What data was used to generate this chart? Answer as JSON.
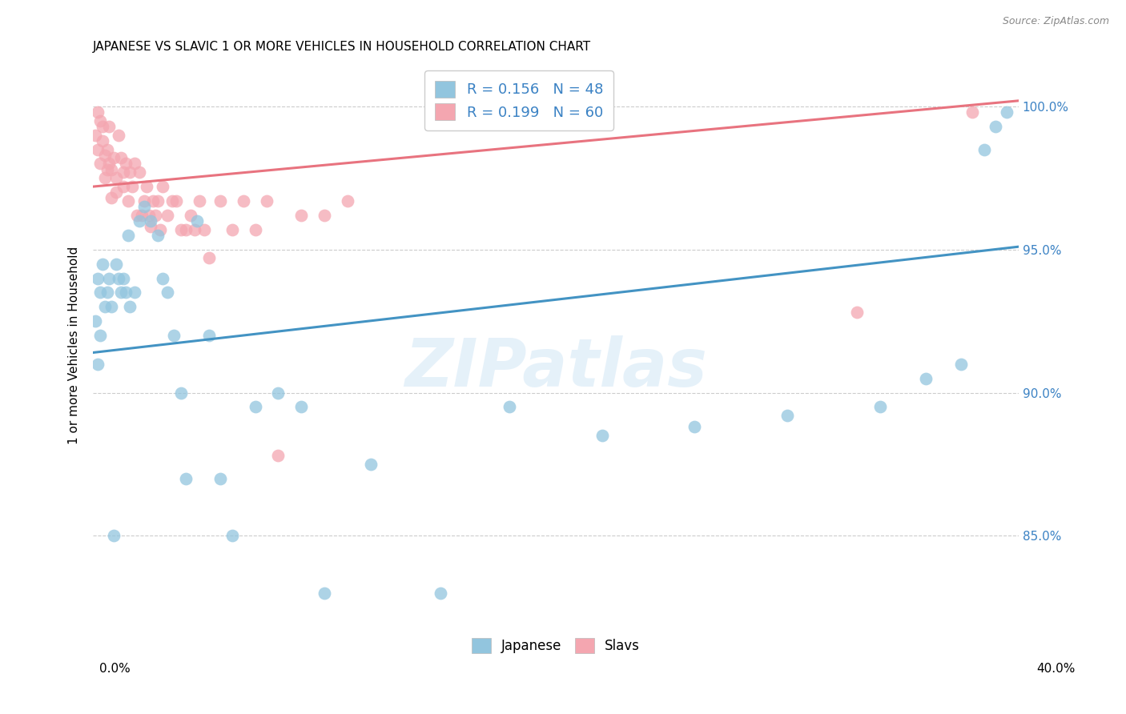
{
  "title": "JAPANESE VS SLAVIC 1 OR MORE VEHICLES IN HOUSEHOLD CORRELATION CHART",
  "source": "Source: ZipAtlas.com",
  "ylabel": "1 or more Vehicles in Household",
  "ytick_labels": [
    "85.0%",
    "90.0%",
    "95.0%",
    "100.0%"
  ],
  "ytick_values": [
    0.85,
    0.9,
    0.95,
    1.0
  ],
  "xlim": [
    0.0,
    0.4
  ],
  "ylim": [
    0.818,
    1.015
  ],
  "blue_color": "#92c5de",
  "pink_color": "#f4a6b0",
  "line_blue": "#4393c3",
  "line_pink": "#e8737f",
  "legend_text_color": "#3b82c4",
  "watermark_text": "ZIPatlas",
  "japanese_x": [
    0.001,
    0.002,
    0.002,
    0.003,
    0.003,
    0.004,
    0.005,
    0.006,
    0.007,
    0.008,
    0.009,
    0.01,
    0.011,
    0.012,
    0.013,
    0.014,
    0.015,
    0.016,
    0.018,
    0.02,
    0.022,
    0.025,
    0.028,
    0.03,
    0.032,
    0.035,
    0.038,
    0.04,
    0.045,
    0.05,
    0.055,
    0.06,
    0.07,
    0.08,
    0.09,
    0.1,
    0.12,
    0.15,
    0.18,
    0.22,
    0.26,
    0.3,
    0.34,
    0.36,
    0.375,
    0.385,
    0.39,
    0.395
  ],
  "japanese_y": [
    0.925,
    0.91,
    0.94,
    0.935,
    0.92,
    0.945,
    0.93,
    0.935,
    0.94,
    0.93,
    0.85,
    0.945,
    0.94,
    0.935,
    0.94,
    0.935,
    0.955,
    0.93,
    0.935,
    0.96,
    0.965,
    0.96,
    0.955,
    0.94,
    0.935,
    0.92,
    0.9,
    0.87,
    0.96,
    0.92,
    0.87,
    0.85,
    0.895,
    0.9,
    0.895,
    0.83,
    0.875,
    0.83,
    0.895,
    0.885,
    0.888,
    0.892,
    0.895,
    0.905,
    0.91,
    0.985,
    0.993,
    0.998
  ],
  "slavic_x": [
    0.001,
    0.002,
    0.002,
    0.003,
    0.003,
    0.004,
    0.004,
    0.005,
    0.005,
    0.006,
    0.006,
    0.007,
    0.007,
    0.008,
    0.008,
    0.009,
    0.01,
    0.01,
    0.011,
    0.012,
    0.013,
    0.013,
    0.014,
    0.015,
    0.016,
    0.017,
    0.018,
    0.019,
    0.02,
    0.021,
    0.022,
    0.023,
    0.024,
    0.025,
    0.026,
    0.027,
    0.028,
    0.029,
    0.03,
    0.032,
    0.034,
    0.036,
    0.038,
    0.04,
    0.042,
    0.044,
    0.046,
    0.048,
    0.05,
    0.055,
    0.06,
    0.065,
    0.07,
    0.075,
    0.08,
    0.09,
    0.1,
    0.11,
    0.33,
    0.38
  ],
  "slavic_y": [
    0.99,
    0.985,
    0.998,
    0.98,
    0.995,
    0.988,
    0.993,
    0.975,
    0.983,
    0.978,
    0.985,
    0.98,
    0.993,
    0.978,
    0.968,
    0.982,
    0.975,
    0.97,
    0.99,
    0.982,
    0.977,
    0.972,
    0.98,
    0.967,
    0.977,
    0.972,
    0.98,
    0.962,
    0.977,
    0.962,
    0.967,
    0.972,
    0.962,
    0.958,
    0.967,
    0.962,
    0.967,
    0.957,
    0.972,
    0.962,
    0.967,
    0.967,
    0.957,
    0.957,
    0.962,
    0.957,
    0.967,
    0.957,
    0.947,
    0.967,
    0.957,
    0.967,
    0.957,
    0.967,
    0.878,
    0.962,
    0.962,
    0.967,
    0.928,
    0.998
  ],
  "blue_line_x0": 0.0,
  "blue_line_y0": 0.914,
  "blue_line_x1": 0.4,
  "blue_line_y1": 0.951,
  "pink_line_x0": 0.0,
  "pink_line_y0": 0.972,
  "pink_line_x1": 0.4,
  "pink_line_y1": 1.002
}
